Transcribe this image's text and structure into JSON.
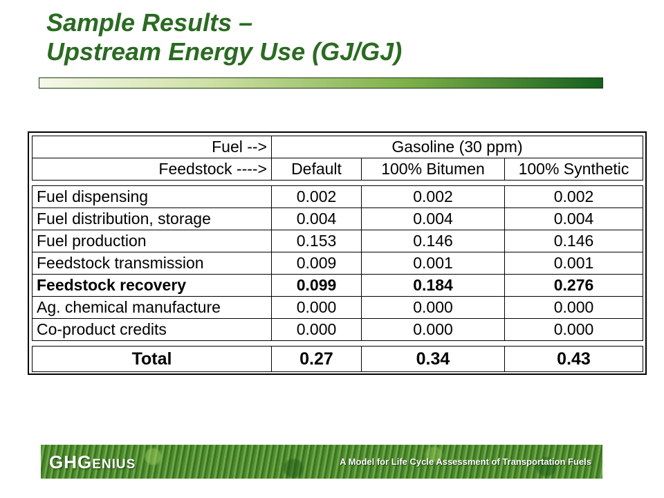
{
  "slide": {
    "title_line1": "Sample Results –",
    "title_line2": "Upstream Energy Use (GJ/GJ)"
  },
  "table": {
    "fuel_label": "Fuel -->",
    "fuel_value": "Gasoline (30 ppm)",
    "feedstock_label": "Feedstock ---->",
    "columns": [
      "Default",
      "100% Bitumen",
      "100% Synthetic"
    ],
    "rows": [
      {
        "label": "Fuel dispensing",
        "values": [
          "0.002",
          "0.002",
          "0.002"
        ]
      },
      {
        "label": "Fuel distribution, storage",
        "values": [
          "0.004",
          "0.004",
          "0.004"
        ]
      },
      {
        "label": "Fuel production",
        "values": [
          "0.153",
          "0.146",
          "0.146"
        ]
      },
      {
        "label": "Feedstock transmission",
        "values": [
          "0.009",
          "0.001",
          "0.001"
        ]
      },
      {
        "label": "Feedstock recovery",
        "values": [
          "0.099",
          "0.184",
          "0.276"
        ]
      },
      {
        "label": "Ag. chemical manufacture",
        "values": [
          "0.000",
          "0.000",
          "0.000"
        ]
      },
      {
        "label": "Co-product credits",
        "values": [
          "0.000",
          "0.000",
          "0.000"
        ]
      }
    ],
    "total": {
      "label": "Total",
      "values": [
        "0.27",
        "0.34",
        "0.43"
      ]
    }
  },
  "footer": {
    "brand_big1": "GHG",
    "brand_small": "ENIUS",
    "tagline": "A Model for Life Cycle Assessment of Transportation Fuels"
  }
}
